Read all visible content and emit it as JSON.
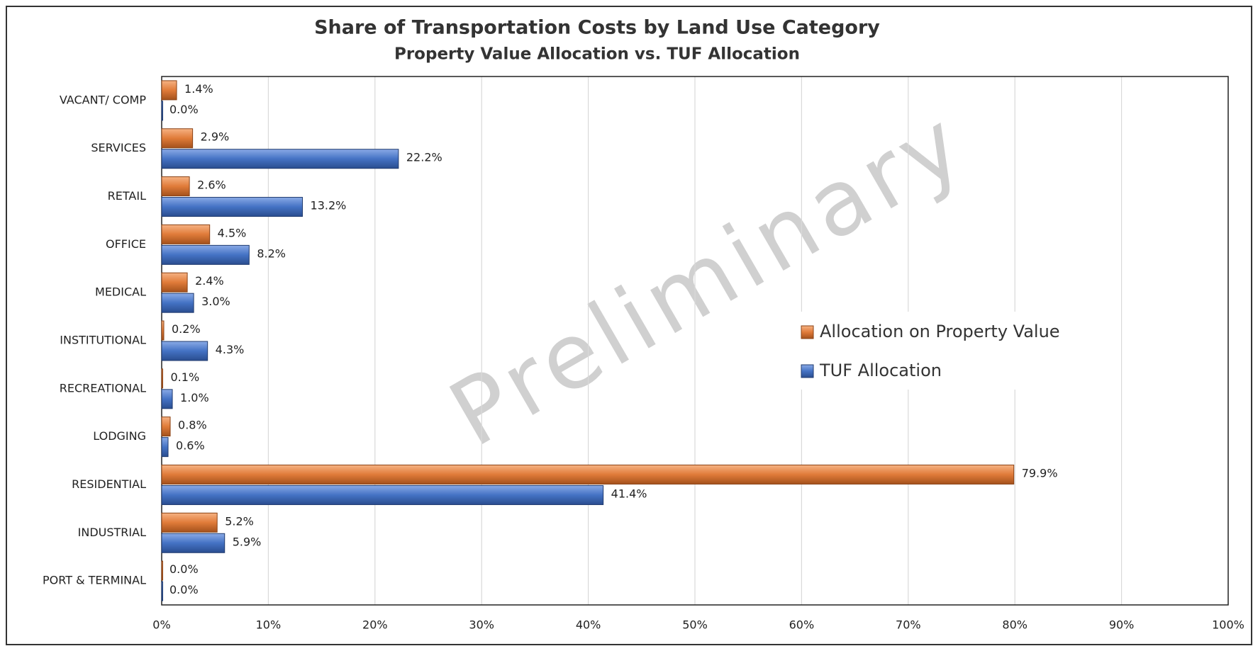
{
  "chart_data": {
    "type": "hbar",
    "title": "Share of Transportation  Costs by Land Use Category",
    "subtitle": "Property Value Allocation vs. TUF Allocation",
    "watermark": "Preliminary",
    "categories": [
      "VACANT/  COMP",
      "SERVICES",
      "RETAIL",
      "OFFICE",
      "MEDICAL",
      "INSTITUTIONAL",
      "RECREATIONAL",
      "LODGING",
      "RESIDENTIAL",
      "INDUSTRIAL",
      "PORT & TERMINAL"
    ],
    "series": [
      {
        "name": "Allocation on Property Value",
        "color": "#e07b39",
        "values": [
          1.4,
          2.9,
          2.6,
          4.5,
          2.4,
          0.2,
          0.1,
          0.8,
          79.9,
          5.2,
          0.0
        ],
        "value_labels": [
          "1.4%",
          "2.9%",
          "2.6%",
          "4.5%",
          "2.4%",
          "0.2%",
          "0.1%",
          "0.8%",
          "79.9%",
          "5.2%",
          "0.0%"
        ]
      },
      {
        "name": "TUF Allocation",
        "color": "#4472c4",
        "values": [
          0.0,
          22.2,
          13.2,
          8.2,
          3.0,
          4.3,
          1.0,
          0.6,
          41.4,
          5.9,
          0.0
        ],
        "value_labels": [
          "0.0%",
          "22.2%",
          "13.2%",
          "8.2%",
          "3.0%",
          "4.3%",
          "1.0%",
          "0.6%",
          "41.4%",
          "5.9%",
          "0.0%"
        ]
      }
    ],
    "xlim": [
      0,
      100
    ],
    "xticks": [
      {
        "value": 0,
        "label": "0%"
      },
      {
        "value": 10,
        "label": "10%"
      },
      {
        "value": 20,
        "label": "20%"
      },
      {
        "value": 30,
        "label": "30%"
      },
      {
        "value": 40,
        "label": "40%"
      },
      {
        "value": 50,
        "label": "50%"
      },
      {
        "value": 60,
        "label": "60%"
      },
      {
        "value": 70,
        "label": "70%"
      },
      {
        "value": 80,
        "label": "80%"
      },
      {
        "value": 90,
        "label": "90%"
      },
      {
        "value": 100,
        "label": "100%"
      }
    ],
    "grid": true,
    "legend": "center-right"
  }
}
